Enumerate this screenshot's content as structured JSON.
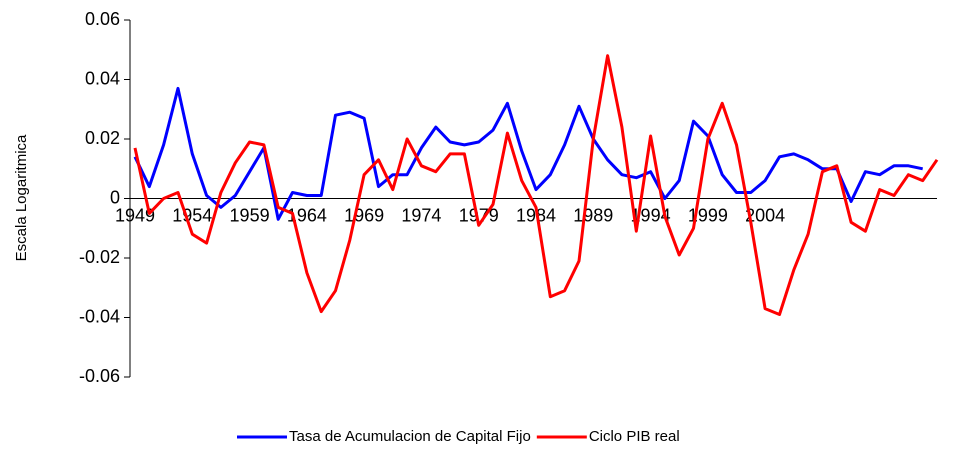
{
  "chart_data": {
    "type": "line",
    "y_label": "Escala Logaritmica",
    "categories": [
      "1949",
      null,
      null,
      null,
      "1954",
      null,
      null,
      null,
      "1959",
      null,
      null,
      null,
      "1964",
      null,
      null,
      null,
      "1969",
      null,
      null,
      null,
      "1974",
      null,
      null,
      null,
      "1979",
      null,
      null,
      null,
      "1984",
      null,
      null,
      null,
      "1989",
      null,
      null,
      null,
      "1994",
      null,
      null,
      null,
      "1999",
      null,
      null,
      null,
      "2004",
      null,
      null,
      null,
      null,
      null,
      null,
      null,
      null,
      null,
      null,
      null,
      null
    ],
    "series": [
      {
        "name": "Tasa de Acumulacion de Capital Fijo",
        "color": "#0000ff",
        "values": [
          0.014,
          0.004,
          0.018,
          0.037,
          0.015,
          0.001,
          -0.003,
          0.001,
          0.009,
          0.017,
          -0.007,
          0.002,
          0.001,
          0.001,
          0.028,
          0.029,
          0.027,
          0.004,
          0.008,
          0.008,
          0.017,
          0.024,
          0.019,
          0.018,
          0.019,
          0.023,
          0.032,
          0.016,
          0.003,
          0.008,
          0.018,
          0.031,
          0.02,
          0.013,
          0.008,
          0.007,
          0.009,
          0.0,
          0.006,
          0.026,
          0.021,
          0.008,
          0.002,
          0.002,
          0.006,
          0.014,
          0.015,
          0.013,
          0.01,
          0.01,
          -0.001,
          0.009,
          0.008,
          0.011,
          0.011,
          0.01,
          null
        ]
      },
      {
        "name": "Ciclo PIB real",
        "color": "#ff0000",
        "values": [
          0.017,
          -0.005,
          0.0,
          0.002,
          -0.012,
          -0.015,
          0.002,
          0.012,
          0.019,
          0.018,
          -0.003,
          -0.005,
          -0.025,
          -0.038,
          -0.031,
          -0.014,
          0.008,
          0.013,
          0.003,
          0.02,
          0.011,
          0.009,
          0.015,
          0.015,
          -0.009,
          -0.002,
          0.022,
          0.006,
          -0.003,
          -0.033,
          -0.031,
          -0.021,
          0.02,
          0.048,
          0.024,
          -0.011,
          0.021,
          -0.006,
          -0.019,
          -0.01,
          0.02,
          0.032,
          0.018,
          -0.008,
          -0.037,
          -0.039,
          -0.024,
          -0.012,
          0.009,
          0.011,
          -0.008,
          -0.011,
          0.003,
          0.001,
          0.008,
          0.006,
          0.013
        ]
      }
    ],
    "ylim": [
      -0.06,
      0.06
    ],
    "yticks": [
      -0.06,
      -0.04,
      -0.02,
      0,
      0.02,
      0.04,
      0.06
    ],
    "grid": false,
    "legend": "bottom"
  }
}
